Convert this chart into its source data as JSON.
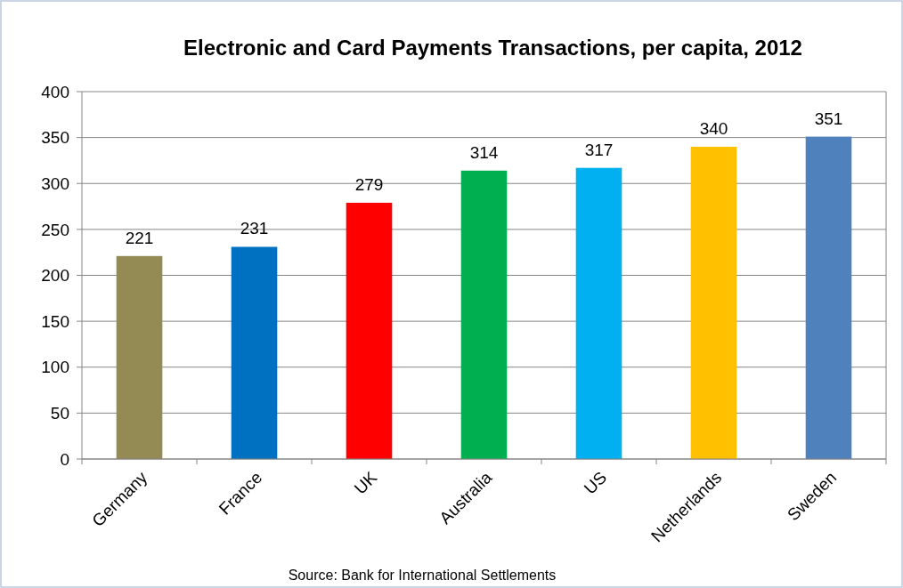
{
  "chart_data": {
    "type": "bar",
    "title": "Electronic and Card Payments Transactions, per capita, 2012",
    "categories": [
      "Germany",
      "France",
      "UK",
      "Australia",
      "US",
      "Netherlands",
      "Sweden"
    ],
    "values": [
      221,
      231,
      279,
      314,
      317,
      340,
      351
    ],
    "colors": [
      "#948a54",
      "#0070c0",
      "#ff0000",
      "#00b050",
      "#00b0f0",
      "#ffc000",
      "#4f81bd"
    ],
    "ylim": [
      0,
      400
    ],
    "yticks": [
      0,
      50,
      100,
      150,
      200,
      250,
      300,
      350,
      400
    ],
    "grid": "y",
    "data_labels": true,
    "annotations": [
      "Source: Bank for International Settlements"
    ]
  }
}
